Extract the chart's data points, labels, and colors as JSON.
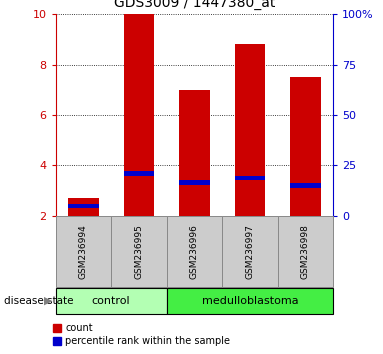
{
  "title": "GDS3009 / 1447380_at",
  "samples": [
    "GSM236994",
    "GSM236995",
    "GSM236996",
    "GSM236997",
    "GSM236998"
  ],
  "red_bar_bottom": 2.0,
  "red_bar_tops": [
    2.7,
    10.0,
    7.0,
    8.8,
    7.5
  ],
  "blue_bar_bottoms": [
    2.3,
    3.58,
    3.22,
    3.42,
    3.12
  ],
  "blue_bar_tops": [
    2.48,
    3.78,
    3.42,
    3.6,
    3.32
  ],
  "ylim_left": [
    2,
    10
  ],
  "ylim_right": [
    0,
    100
  ],
  "yticks_left": [
    2,
    4,
    6,
    8,
    10
  ],
  "yticks_right": [
    0,
    25,
    50,
    75,
    100
  ],
  "ytick_labels_right": [
    "0",
    "25",
    "50",
    "75",
    "100%"
  ],
  "group_labels": [
    "control",
    "medulloblastoma"
  ],
  "group_ranges": [
    [
      0,
      2
    ],
    [
      2,
      5
    ]
  ],
  "group_colors_light": "#b3ffb3",
  "group_colors_dark": "#44ee44",
  "disease_state_label": "disease state",
  "legend_count": "count",
  "legend_percentile": "percentile rank within the sample",
  "bar_color_red": "#cc0000",
  "bar_color_blue": "#0000cc",
  "bar_width": 0.55,
  "tick_label_box_color": "#cccccc",
  "tick_label_box_edge": "#888888",
  "grid_color": "#000000",
  "left_tick_color": "#cc0000",
  "right_tick_color": "#0000cc",
  "group_colors": [
    "#b3ffb3",
    "#44ee44"
  ]
}
